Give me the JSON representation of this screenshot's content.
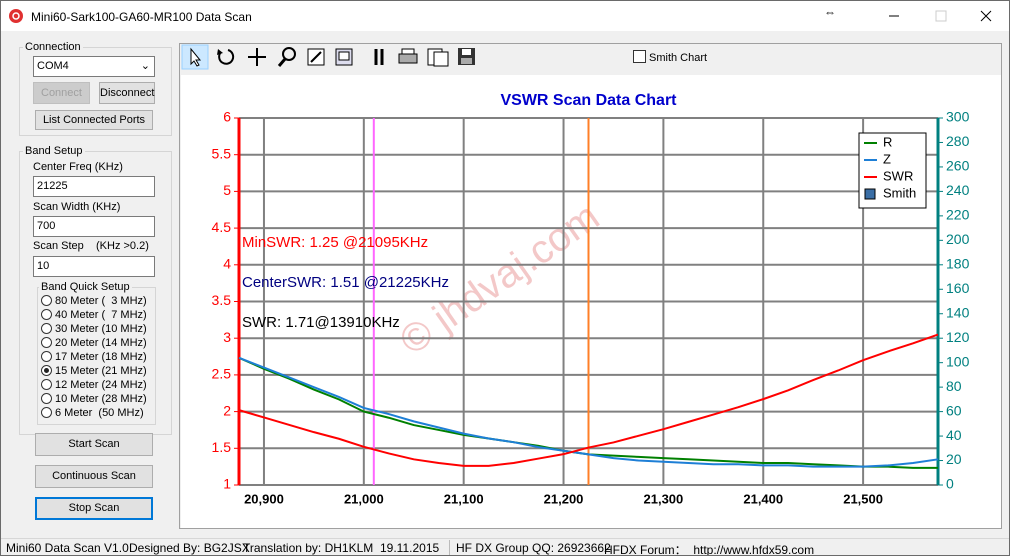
{
  "window": {
    "title": "Mini60-Sark100-GA60-MR100 Data Scan"
  },
  "connection": {
    "label": "Connection",
    "port": "COM4",
    "connect": "Connect",
    "disconnect": "Disconnect",
    "list_ports": "List Connected Ports"
  },
  "band_setup": {
    "label": "Band Setup",
    "center_freq_label": "Center Freq  (KHz)",
    "center_freq": "21225",
    "scan_width_label": "Scan Width   (KHz)",
    "scan_width": "700",
    "scan_step_label": "Scan Step",
    "scan_step_unit": "(KHz >0.2)",
    "scan_step": "10"
  },
  "band_quick_setup": {
    "label": "Band Quick Setup",
    "options": [
      "80 Meter (  3 MHz)",
      "40 Meter (  7 MHz)",
      "30 Meter (10 MHz)",
      "20 Meter (14 MHz)",
      "17 Meter (18 MHz)",
      "15 Meter (21 MHz)",
      "12 Meter (24 MHz)",
      "10 Meter (28 MHz)",
      "6 Meter  (50 MHz)"
    ],
    "selected": 5
  },
  "buttons": {
    "start": "Start Scan",
    "continuous": "Continuous Scan",
    "stop": "Stop Scan"
  },
  "toolbar": {
    "smith_chart": "Smith Chart"
  },
  "status": [
    "Mini60 Data Scan V1.0",
    "Designed By: BG2JSX",
    "Translation by: DH1KLM",
    "19.11.2015",
    "HF DX Group QQ: 26923662",
    "HFDX Forum：  http://www.hfdx59.com"
  ],
  "chart_data": {
    "type": "line",
    "title": "VSWR Scan Data Chart",
    "watermark": "© jhdvaj.com",
    "x": [
      20875,
      20900,
      20925,
      20950,
      20975,
      21000,
      21025,
      21050,
      21075,
      21100,
      21125,
      21150,
      21175,
      21200,
      21225,
      21250,
      21275,
      21300,
      21325,
      21350,
      21375,
      21400,
      21425,
      21450,
      21475,
      21500,
      21525,
      21550,
      21575
    ],
    "series": [
      {
        "name": "R",
        "color": "#008000",
        "axis": "y2",
        "values": [
          104,
          95,
          87,
          78,
          70,
          60,
          55,
          49,
          45,
          41,
          38,
          35,
          32,
          28,
          25,
          24,
          23,
          22,
          21,
          20,
          19,
          18,
          18,
          17,
          16,
          15,
          15,
          14,
          14
        ]
      },
      {
        "name": "Z",
        "color": "#1e7fd6",
        "axis": "y2",
        "values": [
          104,
          96,
          88,
          80,
          72,
          63,
          58,
          52,
          47,
          42,
          38,
          35,
          31,
          28,
          25,
          22,
          20,
          19,
          18,
          17,
          17,
          16,
          16,
          15,
          15,
          15,
          16,
          18,
          21
        ]
      },
      {
        "name": "SWR",
        "color": "#ff0000",
        "values": [
          2.02,
          1.92,
          1.82,
          1.72,
          1.63,
          1.52,
          1.43,
          1.35,
          1.3,
          1.26,
          1.26,
          1.3,
          1.36,
          1.42,
          1.51,
          1.58,
          1.67,
          1.76,
          1.86,
          1.96,
          2.06,
          2.17,
          2.29,
          2.43,
          2.56,
          2.7,
          2.82,
          2.93,
          3.05
        ]
      }
    ],
    "smith_legend": "Smith",
    "legend": "upper right",
    "markers": [
      {
        "x": 21010,
        "color": "#ff66ff"
      },
      {
        "x": 21225,
        "color": "#ff7f27"
      }
    ],
    "annotations": [
      {
        "text": "MinSWR: 1.25 @21095KHz",
        "color": "#ff0000"
      },
      {
        "text": "CenterSWR: 1.51 @21225KHz",
        "color": "#000080"
      },
      {
        "text": "SWR: 1.71@13910KHz",
        "color": "#000000"
      }
    ],
    "xlim": [
      20875,
      21575
    ],
    "xticks": [
      {
        "value": 20900,
        "label": "20,900"
      },
      {
        "value": 21000,
        "label": "21,000"
      },
      {
        "value": 21100,
        "label": "21,100"
      },
      {
        "value": 21200,
        "label": "21,200"
      },
      {
        "value": 21300,
        "label": "21,300"
      },
      {
        "value": 21400,
        "label": "21,400"
      },
      {
        "value": 21500,
        "label": "21,500"
      }
    ],
    "ylim": [
      1,
      6
    ],
    "yticks": [
      1,
      1.5,
      2,
      2.5,
      3,
      3.5,
      4,
      4.5,
      5,
      5.5,
      6
    ],
    "y_color": "#ff0000",
    "y2lim": [
      0,
      300
    ],
    "y2ticks": [
      0,
      20,
      40,
      60,
      80,
      100,
      120,
      140,
      160,
      180,
      200,
      220,
      240,
      260,
      280,
      300
    ],
    "y2_color": "#008080",
    "grid": true
  }
}
